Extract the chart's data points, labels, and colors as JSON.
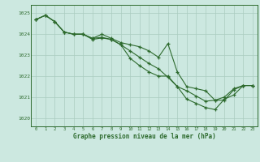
{
  "xlabel": "Graphe pression niveau de la mer (hPa)",
  "hours": [
    0,
    1,
    2,
    3,
    4,
    5,
    6,
    7,
    8,
    9,
    10,
    11,
    12,
    13,
    14,
    15,
    16,
    17,
    18,
    19,
    20,
    21,
    22,
    23
  ],
  "series1": [
    1024.7,
    1024.9,
    1024.6,
    1024.1,
    1024.0,
    1024.0,
    1023.8,
    1024.0,
    1023.8,
    1023.6,
    1023.5,
    1023.4,
    1023.2,
    1022.9,
    1023.55,
    1022.2,
    1021.5,
    1021.4,
    1021.3,
    1020.85,
    1021.0,
    1021.4,
    1021.55,
    1021.55
  ],
  "series2": [
    1024.7,
    1024.9,
    1024.6,
    1024.1,
    1024.0,
    1024.0,
    1023.8,
    1023.85,
    1023.75,
    1023.5,
    1023.2,
    1022.9,
    1022.6,
    1022.35,
    1021.95,
    1021.5,
    1021.3,
    1021.05,
    1020.8,
    1020.85,
    1020.85,
    1021.35,
    1021.55,
    1021.55
  ],
  "series3": [
    1024.7,
    1024.9,
    1024.6,
    1024.1,
    1024.0,
    1024.0,
    1023.75,
    1023.82,
    1023.75,
    1023.5,
    1022.85,
    1022.5,
    1022.2,
    1022.0,
    1022.0,
    1021.5,
    1020.9,
    1020.7,
    1020.5,
    1020.4,
    1020.9,
    1021.1,
    1021.55,
    1021.55
  ],
  "line_color": "#2d6a2d",
  "bg_color": "#cce8e0",
  "grid_color": "#aaccbf",
  "ylim_min": 1019.6,
  "ylim_max": 1025.4,
  "yticks": [
    1020,
    1021,
    1022,
    1023,
    1024,
    1025
  ],
  "marker": "+",
  "markersize": 3.5,
  "linewidth": 0.8
}
